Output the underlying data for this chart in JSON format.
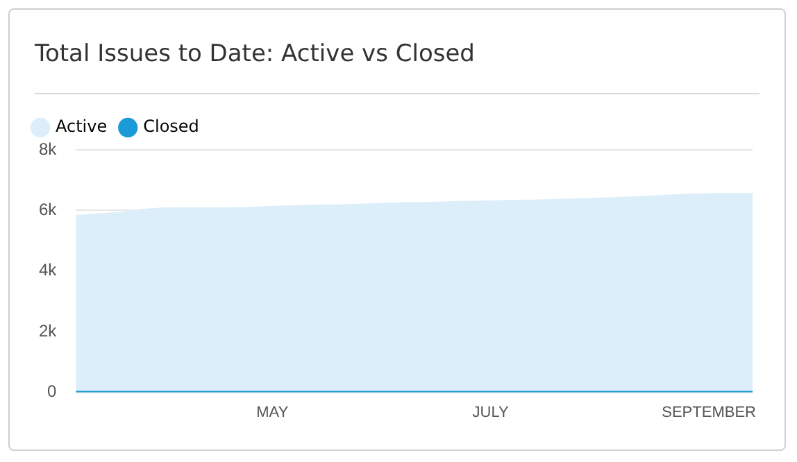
{
  "chart_data": {
    "type": "area",
    "title": "Total Issues to Date: Active vs Closed",
    "categories": [
      null,
      null,
      null,
      null,
      null,
      null,
      null,
      null,
      null,
      "MAY",
      null,
      null,
      null,
      null,
      null,
      null,
      null,
      null,
      null,
      "JULY",
      null,
      null,
      null,
      null,
      null,
      null,
      null,
      null,
      null,
      "SEPTEMBER",
      null,
      null
    ],
    "series": [
      {
        "name": "Active",
        "color": "#dbeef9",
        "values": [
          5850,
          5900,
          5950,
          6050,
          6100,
          6100,
          6100,
          6100,
          6120,
          6150,
          6170,
          6200,
          6200,
          6220,
          6250,
          6270,
          6280,
          6300,
          6320,
          6330,
          6350,
          6360,
          6380,
          6400,
          6420,
          6450,
          6480,
          6520,
          6550,
          6570,
          6570,
          6570
        ]
      },
      {
        "name": "Closed",
        "type": "line",
        "color": "#1a9ad6",
        "values": [
          0,
          0,
          0,
          0,
          0,
          0,
          0,
          0,
          0,
          0,
          0,
          0,
          0,
          0,
          0,
          0,
          0,
          0,
          0,
          0,
          0,
          0,
          0,
          0,
          0,
          0,
          0,
          0,
          0,
          0,
          0,
          0
        ]
      }
    ],
    "ylim": [
      0,
      8000
    ],
    "yticks": [
      0,
      {
        "value": 2000,
        "label": "2k"
      },
      {
        "value": 4000,
        "label": "4k"
      },
      {
        "value": 6000,
        "label": "6k"
      },
      {
        "value": 8000,
        "label": "8k"
      }
    ],
    "grid": "y",
    "legend": "top left",
    "marker": "none"
  }
}
